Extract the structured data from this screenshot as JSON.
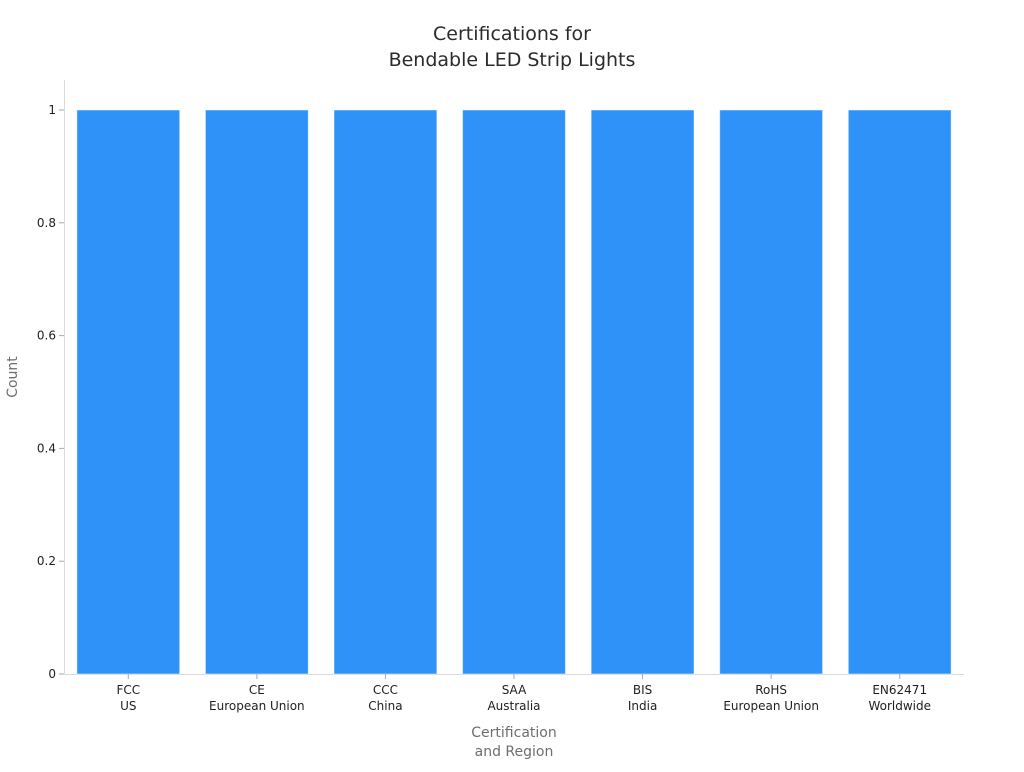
{
  "chart_data": {
    "type": "bar",
    "title": [
      "Certifications for",
      "Bendable LED Strip Lights"
    ],
    "xlabel": [
      "Certification",
      "and Region"
    ],
    "ylabel": "Count",
    "categories": [
      [
        "FCC",
        "US"
      ],
      [
        "CE",
        "European Union"
      ],
      [
        "CCC",
        "China"
      ],
      [
        "SAA",
        "Australia"
      ],
      [
        "BIS",
        "India"
      ],
      [
        "RoHS",
        "European Union"
      ],
      [
        "EN62471",
        "Worldwide"
      ]
    ],
    "values": [
      1,
      1,
      1,
      1,
      1,
      1,
      1
    ],
    "ylim": [
      0,
      1
    ],
    "yticks": [
      0,
      0.2,
      0.4,
      0.6,
      0.8,
      1
    ],
    "ytick_labels": [
      "0",
      "0.2",
      "0.4",
      "0.6",
      "0.8",
      "1"
    ],
    "grid": false,
    "legend": "none",
    "bar_color": "#2F92F8"
  }
}
